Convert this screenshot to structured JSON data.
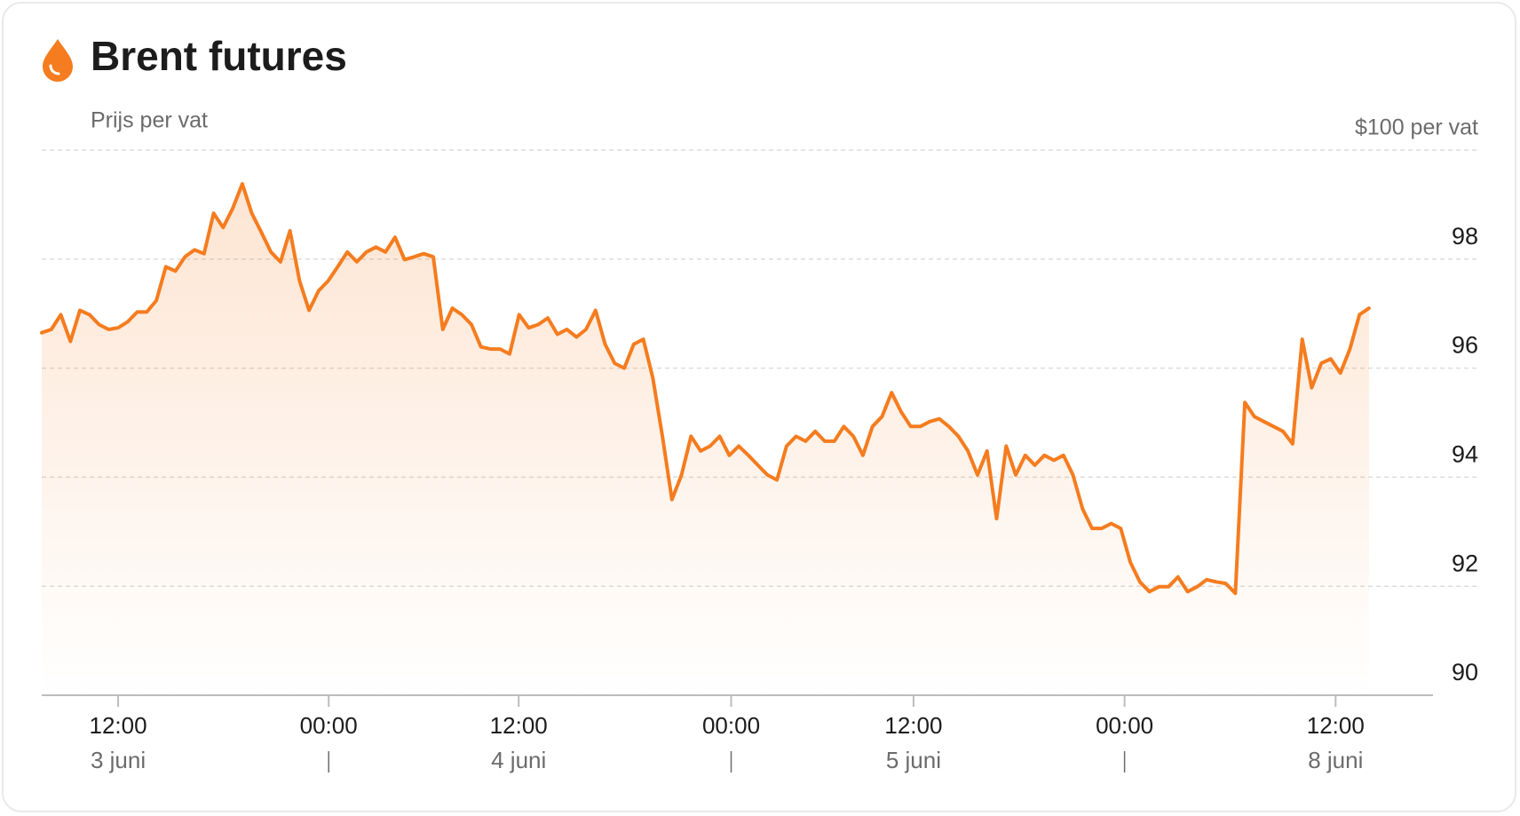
{
  "chart_data": {
    "type": "line",
    "title": "Brent futures",
    "subtitle": "Prijs per vat",
    "color": "#f57c1f",
    "area": true,
    "grid": true,
    "xlim": [
      0,
      145.7
    ],
    "xticks": [
      {
        "value": 8.0,
        "label": "12:00",
        "date": "3 juni"
      },
      {
        "value": 30.05,
        "label": "00:00"
      },
      {
        "value": 49.95,
        "label": "12:00",
        "date": "4 juni"
      },
      {
        "value": 72.2,
        "label": "00:00"
      },
      {
        "value": 91.3,
        "label": "12:00",
        "date": "5 juni"
      },
      {
        "value": 113.4,
        "label": "00:00"
      },
      {
        "value": 135.5,
        "label": "12:00",
        "date": "8 juni"
      }
    ],
    "ylim": [
      90,
      100
    ],
    "yticks": [
      90,
      92,
      94,
      96,
      98,
      {
        "value": 100,
        "label": "$100 per vat"
      }
    ],
    "values": [
      96.65,
      96.71,
      96.98,
      96.49,
      97.06,
      96.98,
      96.8,
      96.71,
      96.74,
      96.85,
      97.03,
      97.03,
      97.24,
      97.86,
      97.78,
      98.04,
      98.17,
      98.1,
      98.84,
      98.58,
      98.93,
      99.38,
      98.84,
      98.49,
      98.13,
      97.95,
      98.52,
      97.6,
      97.06,
      97.42,
      97.6,
      97.86,
      98.13,
      97.95,
      98.13,
      98.22,
      98.13,
      98.4,
      97.99,
      98.04,
      98.1,
      98.04,
      96.71,
      97.1,
      96.98,
      96.8,
      96.39,
      96.35,
      96.35,
      96.26,
      96.98,
      96.74,
      96.8,
      96.92,
      96.62,
      96.71,
      96.57,
      96.71,
      97.06,
      96.44,
      96.09,
      96.0,
      96.44,
      96.53,
      95.82,
      94.75,
      93.59,
      94.04,
      94.75,
      94.48,
      94.57,
      94.75,
      94.4,
      94.57,
      94.4,
      94.22,
      94.04,
      93.95,
      94.57,
      94.75,
      94.66,
      94.84,
      94.66,
      94.66,
      94.93,
      94.75,
      94.4,
      94.93,
      95.11,
      95.55,
      95.2,
      94.93,
      94.93,
      95.02,
      95.07,
      94.93,
      94.75,
      94.48,
      94.04,
      94.48,
      93.24,
      94.57,
      94.04,
      94.4,
      94.22,
      94.4,
      94.31,
      94.4,
      94.04,
      93.42,
      93.06,
      93.06,
      93.15,
      93.06,
      92.44,
      92.08,
      91.9,
      91.99,
      91.99,
      92.17,
      91.9,
      91.99,
      92.12,
      92.08,
      92.05,
      91.87,
      95.37,
      95.11,
      95.02,
      94.93,
      94.84,
      94.61,
      96.53,
      95.64,
      96.09,
      96.17,
      95.91,
      96.35,
      96.98,
      97.1
    ]
  }
}
